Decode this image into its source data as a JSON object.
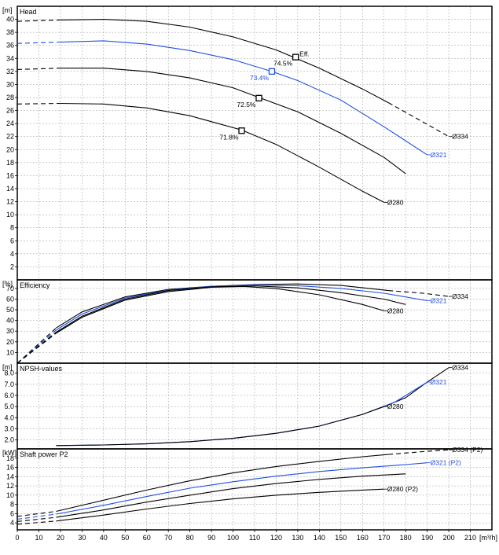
{
  "colors": {
    "default": "#000000",
    "highlight": "#1f4fe0"
  },
  "x_axis": {
    "unit": "[m³/h]",
    "min": 0,
    "max": 220,
    "ticks": [
      0,
      10,
      20,
      30,
      40,
      50,
      60,
      70,
      80,
      90,
      100,
      110,
      120,
      130,
      140,
      150,
      160,
      170,
      180,
      190,
      200,
      210
    ]
  },
  "chart_data": [
    {
      "type": "line",
      "title": "Head",
      "ylabel": "[m]",
      "ylim": [
        0,
        42
      ],
      "yticks": [
        2,
        4,
        6,
        8,
        10,
        12,
        14,
        16,
        18,
        20,
        22,
        24,
        26,
        28,
        30,
        32,
        34,
        36,
        38,
        40
      ],
      "eff_label": "Eff.",
      "series": [
        {
          "name": "Ø334",
          "highlight": false,
          "dashed_start": [
            [
              0,
              39.7
            ],
            [
              20,
              39.9
            ]
          ],
          "points": [
            [
              20,
              39.9
            ],
            [
              40,
              40.0
            ],
            [
              60,
              39.7
            ],
            [
              80,
              38.8
            ],
            [
              100,
              37.3
            ],
            [
              120,
              35.3
            ],
            [
              140,
              32.5
            ],
            [
              160,
              29.3
            ],
            [
              172,
              27.2
            ]
          ],
          "dashed_end": [
            [
              172,
              27.2
            ],
            [
              185,
              24.8
            ],
            [
              200,
              22.0
            ]
          ],
          "label_at": [
            200,
            22.0
          ]
        },
        {
          "name": "Ø321",
          "highlight": true,
          "dashed_start": [
            [
              0,
              36.3
            ],
            [
              20,
              36.5
            ]
          ],
          "points": [
            [
              20,
              36.5
            ],
            [
              40,
              36.7
            ],
            [
              60,
              36.2
            ],
            [
              80,
              35.2
            ],
            [
              100,
              33.8
            ],
            [
              118,
              32.0
            ],
            [
              130,
              30.6
            ],
            [
              150,
              27.6
            ],
            [
              170,
              23.5
            ],
            [
              190,
              19.2
            ]
          ],
          "dashed_end": [],
          "label_at": [
            190,
            19.2
          ]
        },
        {
          "name": "",
          "highlight": false,
          "dashed_start": [
            [
              0,
              32.3
            ],
            [
              20,
              32.5
            ]
          ],
          "points": [
            [
              20,
              32.5
            ],
            [
              40,
              32.5
            ],
            [
              60,
              32.0
            ],
            [
              80,
              31.0
            ],
            [
              100,
              29.5
            ],
            [
              112,
              28.0
            ],
            [
              130,
              25.8
            ],
            [
              150,
              22.5
            ],
            [
              170,
              18.8
            ],
            [
              180,
              16.3
            ]
          ],
          "dashed_end": [],
          "label_at": null
        },
        {
          "name": "Ø280",
          "highlight": false,
          "dashed_start": [
            [
              0,
              27.0
            ],
            [
              20,
              27.1
            ]
          ],
          "points": [
            [
              20,
              27.1
            ],
            [
              40,
              27.0
            ],
            [
              60,
              26.4
            ],
            [
              80,
              25.2
            ],
            [
              104,
              23.0
            ],
            [
              120,
              20.8
            ],
            [
              140,
              17.3
            ],
            [
              160,
              13.6
            ],
            [
              170,
              11.9
            ]
          ],
          "dashed_end": [],
          "label_at": [
            170,
            11.9
          ]
        }
      ],
      "markers": [
        {
          "x": 129,
          "y": 34.2,
          "label": "74.5%",
          "highlight": false
        },
        {
          "x": 118,
          "y": 32.0,
          "label": "73.4%",
          "highlight": true
        },
        {
          "x": 112,
          "y": 27.9,
          "label": "72.5%",
          "highlight": false
        },
        {
          "x": 104,
          "y": 22.9,
          "label": "71.8%",
          "highlight": false
        }
      ]
    },
    {
      "type": "line",
      "title": "Efficiency",
      "ylabel": "[%]",
      "ylim": [
        0,
        78
      ],
      "yticks": [
        10,
        20,
        30,
        40,
        50,
        60,
        70
      ],
      "series": [
        {
          "name": "Ø334",
          "highlight": false,
          "dashed_start": [
            [
              0,
              0
            ],
            [
              18,
              33
            ]
          ],
          "points": [
            [
              18,
              33
            ],
            [
              30,
              48
            ],
            [
              50,
              62
            ],
            [
              70,
              69
            ],
            [
              90,
              72
            ],
            [
              110,
              73.5
            ],
            [
              130,
              74.2
            ],
            [
              150,
              72.8
            ],
            [
              172,
              68.0
            ]
          ],
          "dashed_end": [
            [
              172,
              68.0
            ],
            [
              188,
              65.5
            ],
            [
              200,
              62.5
            ]
          ],
          "label_at": [
            200,
            62.5
          ]
        },
        {
          "name": "Ø321",
          "highlight": true,
          "dashed_start": [
            [
              0,
              0
            ],
            [
              18,
              31
            ]
          ],
          "points": [
            [
              18,
              31
            ],
            [
              30,
              46
            ],
            [
              50,
              61
            ],
            [
              70,
              68.5
            ],
            [
              90,
              72
            ],
            [
              110,
              73.2
            ],
            [
              130,
              72.5
            ],
            [
              150,
              70.0
            ],
            [
              170,
              65.5
            ],
            [
              190,
              58.5
            ]
          ],
          "dashed_end": [],
          "label_at": [
            190,
            58.5
          ]
        },
        {
          "name": "",
          "highlight": false,
          "dashed_start": [
            [
              0,
              0
            ],
            [
              18,
              29
            ]
          ],
          "points": [
            [
              18,
              29
            ],
            [
              30,
              44
            ],
            [
              50,
              60
            ],
            [
              70,
              68
            ],
            [
              90,
              71.5
            ],
            [
              110,
              72.3
            ],
            [
              130,
              70.5
            ],
            [
              150,
              66
            ],
            [
              170,
              60
            ],
            [
              180,
              55
            ]
          ],
          "dashed_end": [],
          "label_at": null
        },
        {
          "name": "Ø280",
          "highlight": false,
          "dashed_start": [
            [
              0,
              0
            ],
            [
              18,
              28
            ]
          ],
          "points": [
            [
              18,
              28
            ],
            [
              30,
              43
            ],
            [
              50,
              59
            ],
            [
              70,
              67
            ],
            [
              90,
              71
            ],
            [
              105,
              71.8
            ],
            [
              120,
              69.8
            ],
            [
              140,
              64
            ],
            [
              160,
              55
            ],
            [
              170,
              49
            ]
          ],
          "dashed_end": [],
          "label_at": [
            170,
            49
          ]
        }
      ]
    },
    {
      "type": "line",
      "title": "NPSH-values",
      "ylabel": "[m]",
      "ylim": [
        1.2,
        8.9
      ],
      "yticks": [
        "2.0",
        "3.0",
        "4.0",
        "5.0",
        "6.0",
        "7.0",
        "8.0"
      ],
      "series": [
        {
          "name": "Ø334",
          "highlight": false,
          "dashed_start": [],
          "points": [
            [
              170,
              5.0
            ],
            [
              180,
              5.8
            ],
            [
              190,
              7.2
            ],
            [
              200,
              8.5
            ]
          ],
          "dashed_end": [],
          "label_at": [
            200,
            8.5
          ]
        },
        {
          "name": "Ø321",
          "highlight": true,
          "dashed_start": [],
          "points": [
            [
              18,
              1.5
            ],
            [
              40,
              1.55
            ],
            [
              60,
              1.65
            ],
            [
              80,
              1.85
            ],
            [
              100,
              2.15
            ],
            [
              120,
              2.6
            ],
            [
              140,
              3.25
            ],
            [
              160,
              4.3
            ],
            [
              175,
              5.4
            ],
            [
              190,
              7.2
            ]
          ],
          "dashed_end": [],
          "label_at": [
            190,
            7.2
          ]
        },
        {
          "name": "Ø280",
          "highlight": false,
          "dashed_start": [],
          "points": [
            [
              18,
              1.5
            ],
            [
              40,
              1.55
            ],
            [
              60,
              1.65
            ],
            [
              80,
              1.85
            ],
            [
              100,
              2.15
            ],
            [
              120,
              2.6
            ],
            [
              140,
              3.25
            ],
            [
              160,
              4.3
            ],
            [
              170,
              5.0
            ]
          ],
          "dashed_end": [],
          "label_at": [
            170,
            5.0
          ]
        }
      ]
    },
    {
      "type": "line",
      "title": "Shaft power P2",
      "ylabel": "[kW]",
      "ylim": [
        2.5,
        20
      ],
      "yticks": [
        4,
        6,
        8,
        10,
        12,
        14,
        16,
        18
      ],
      "series": [
        {
          "name": "Ø334 (P2)",
          "highlight": false,
          "dashed_start": [
            [
              0,
              5.4
            ],
            [
              18,
              6.5
            ]
          ],
          "points": [
            [
              18,
              6.5
            ],
            [
              40,
              8.9
            ],
            [
              60,
              11.1
            ],
            [
              80,
              13.1
            ],
            [
              100,
              14.8
            ],
            [
              120,
              16.2
            ],
            [
              140,
              17.3
            ],
            [
              160,
              18.3
            ],
            [
              172,
              18.8
            ]
          ],
          "dashed_end": [
            [
              172,
              18.8
            ],
            [
              188,
              19.4
            ],
            [
              200,
              19.8
            ]
          ],
          "label_at": [
            200,
            19.8
          ]
        },
        {
          "name": "Ø321 (P2)",
          "highlight": true,
          "dashed_start": [
            [
              0,
              4.8
            ],
            [
              18,
              5.9
            ]
          ],
          "points": [
            [
              18,
              5.9
            ],
            [
              40,
              7.8
            ],
            [
              60,
              9.7
            ],
            [
              80,
              11.5
            ],
            [
              100,
              12.9
            ],
            [
              120,
              14.1
            ],
            [
              140,
              15.1
            ],
            [
              160,
              15.9
            ],
            [
              180,
              16.6
            ],
            [
              190,
              17.0
            ]
          ],
          "dashed_end": [],
          "label_at": [
            190,
            17.0
          ]
        },
        {
          "name": "",
          "highlight": false,
          "dashed_start": [
            [
              0,
              4.3
            ],
            [
              18,
              5.2
            ]
          ],
          "points": [
            [
              18,
              5.2
            ],
            [
              40,
              6.8
            ],
            [
              60,
              8.5
            ],
            [
              80,
              10.0
            ],
            [
              100,
              11.4
            ],
            [
              120,
              12.5
            ],
            [
              140,
              13.4
            ],
            [
              160,
              14.1
            ],
            [
              180,
              14.6
            ]
          ],
          "dashed_end": [],
          "label_at": null
        },
        {
          "name": "Ø280 (P2)",
          "highlight": false,
          "dashed_start": [
            [
              0,
              3.7
            ],
            [
              18,
              4.4
            ]
          ],
          "points": [
            [
              18,
              4.4
            ],
            [
              40,
              5.7
            ],
            [
              60,
              7.0
            ],
            [
              80,
              8.2
            ],
            [
              100,
              9.2
            ],
            [
              120,
              10.0
            ],
            [
              140,
              10.6
            ],
            [
              160,
              11.1
            ],
            [
              170,
              11.3
            ]
          ],
          "dashed_end": [],
          "label_at": [
            170,
            11.3
          ]
        }
      ]
    }
  ]
}
